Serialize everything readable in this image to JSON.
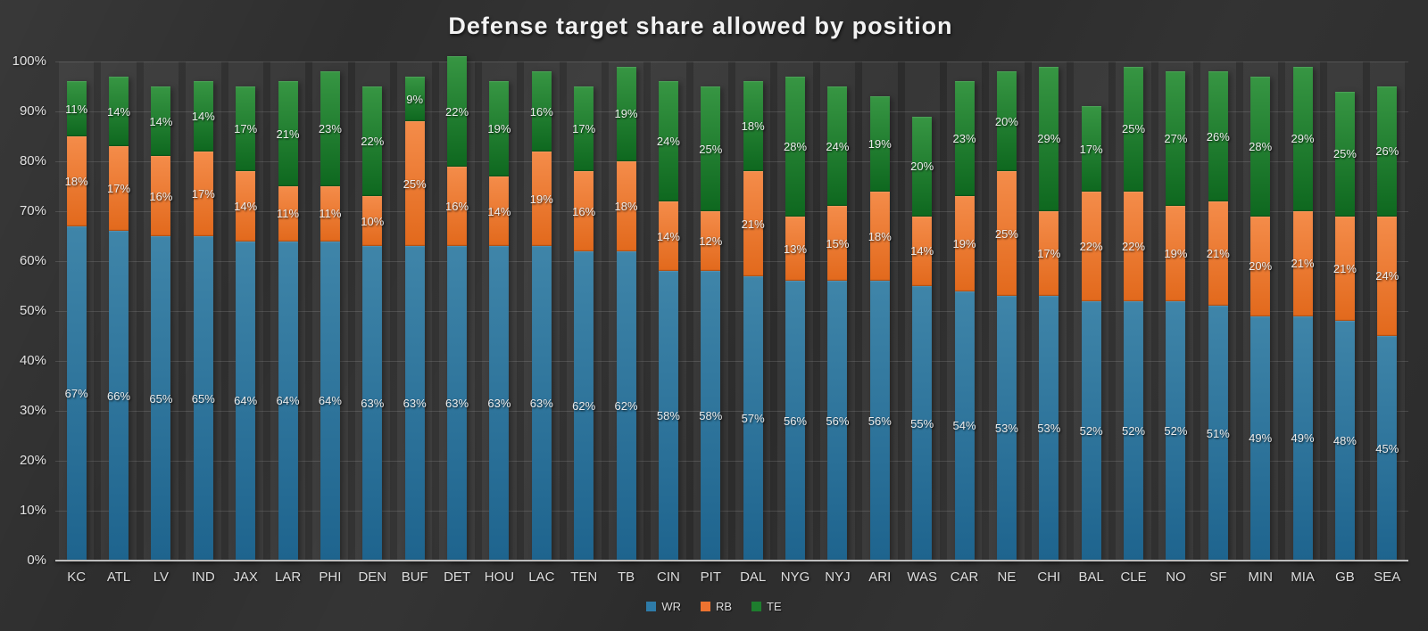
{
  "title": "Defense target share allowed by position",
  "y_axis": {
    "min": 0,
    "max": 100,
    "step": 10,
    "ticks": [
      "0%",
      "10%",
      "20%",
      "30%",
      "40%",
      "50%",
      "60%",
      "70%",
      "80%",
      "90%",
      "100%"
    ]
  },
  "legend": {
    "items": [
      {
        "label": "WR",
        "color": "#2e7ba8"
      },
      {
        "label": "RB",
        "color": "#ed7330"
      },
      {
        "label": "TE",
        "color": "#1e7e2e"
      }
    ]
  },
  "colors": {
    "background": "#2e2e2e",
    "band": "rgba(255,255,255,0.055)",
    "gridline": "rgba(255,255,255,0.13)",
    "axis_line": "#bdbdbd",
    "tick_text": "#e2e2e2",
    "data_label_text": "#ececec",
    "title_text": "#f2f2f2"
  },
  "chart_data": {
    "type": "bar",
    "stacked": true,
    "grid": true,
    "legend_position": "bottom",
    "title": "Defense target share allowed by position",
    "xlabel": "",
    "ylabel": "",
    "ylim": [
      0,
      100
    ],
    "value_suffix": "%",
    "categories": [
      "KC",
      "ATL",
      "LV",
      "IND",
      "JAX",
      "LAR",
      "PHI",
      "DEN",
      "BUF",
      "DET",
      "HOU",
      "LAC",
      "TEN",
      "TB",
      "CIN",
      "PIT",
      "DAL",
      "NYG",
      "NYJ",
      "ARI",
      "WAS",
      "CAR",
      "NE",
      "CHI",
      "BAL",
      "CLE",
      "NO",
      "SF",
      "MIN",
      "MIA",
      "GB",
      "SEA"
    ],
    "series": [
      {
        "name": "WR",
        "color": "#2e7ba8",
        "color_top": "#3f85a9",
        "color_bottom": "#1e648e",
        "values": [
          67,
          66,
          65,
          65,
          64,
          64,
          64,
          63,
          63,
          63,
          63,
          63,
          62,
          62,
          58,
          58,
          57,
          56,
          56,
          56,
          55,
          54,
          53,
          53,
          52,
          52,
          52,
          51,
          49,
          49,
          48,
          45
        ]
      },
      {
        "name": "RB",
        "color": "#ed7330",
        "color_top": "#f48c4a",
        "color_bottom": "#e2691c",
        "values": [
          18,
          17,
          16,
          17,
          14,
          11,
          11,
          10,
          25,
          16,
          14,
          19,
          16,
          18,
          14,
          12,
          21,
          13,
          15,
          18,
          14,
          19,
          25,
          17,
          22,
          22,
          19,
          21,
          20,
          21,
          21,
          24
        ]
      },
      {
        "name": "TE",
        "color": "#1e7e2e",
        "color_top": "#379643",
        "color_bottom": "#0e681f",
        "values": [
          11,
          14,
          14,
          14,
          17,
          21,
          23,
          22,
          9,
          22,
          19,
          16,
          17,
          19,
          24,
          25,
          18,
          28,
          24,
          19,
          20,
          23,
          20,
          29,
          17,
          25,
          27,
          26,
          28,
          29,
          25,
          26
        ]
      }
    ]
  }
}
